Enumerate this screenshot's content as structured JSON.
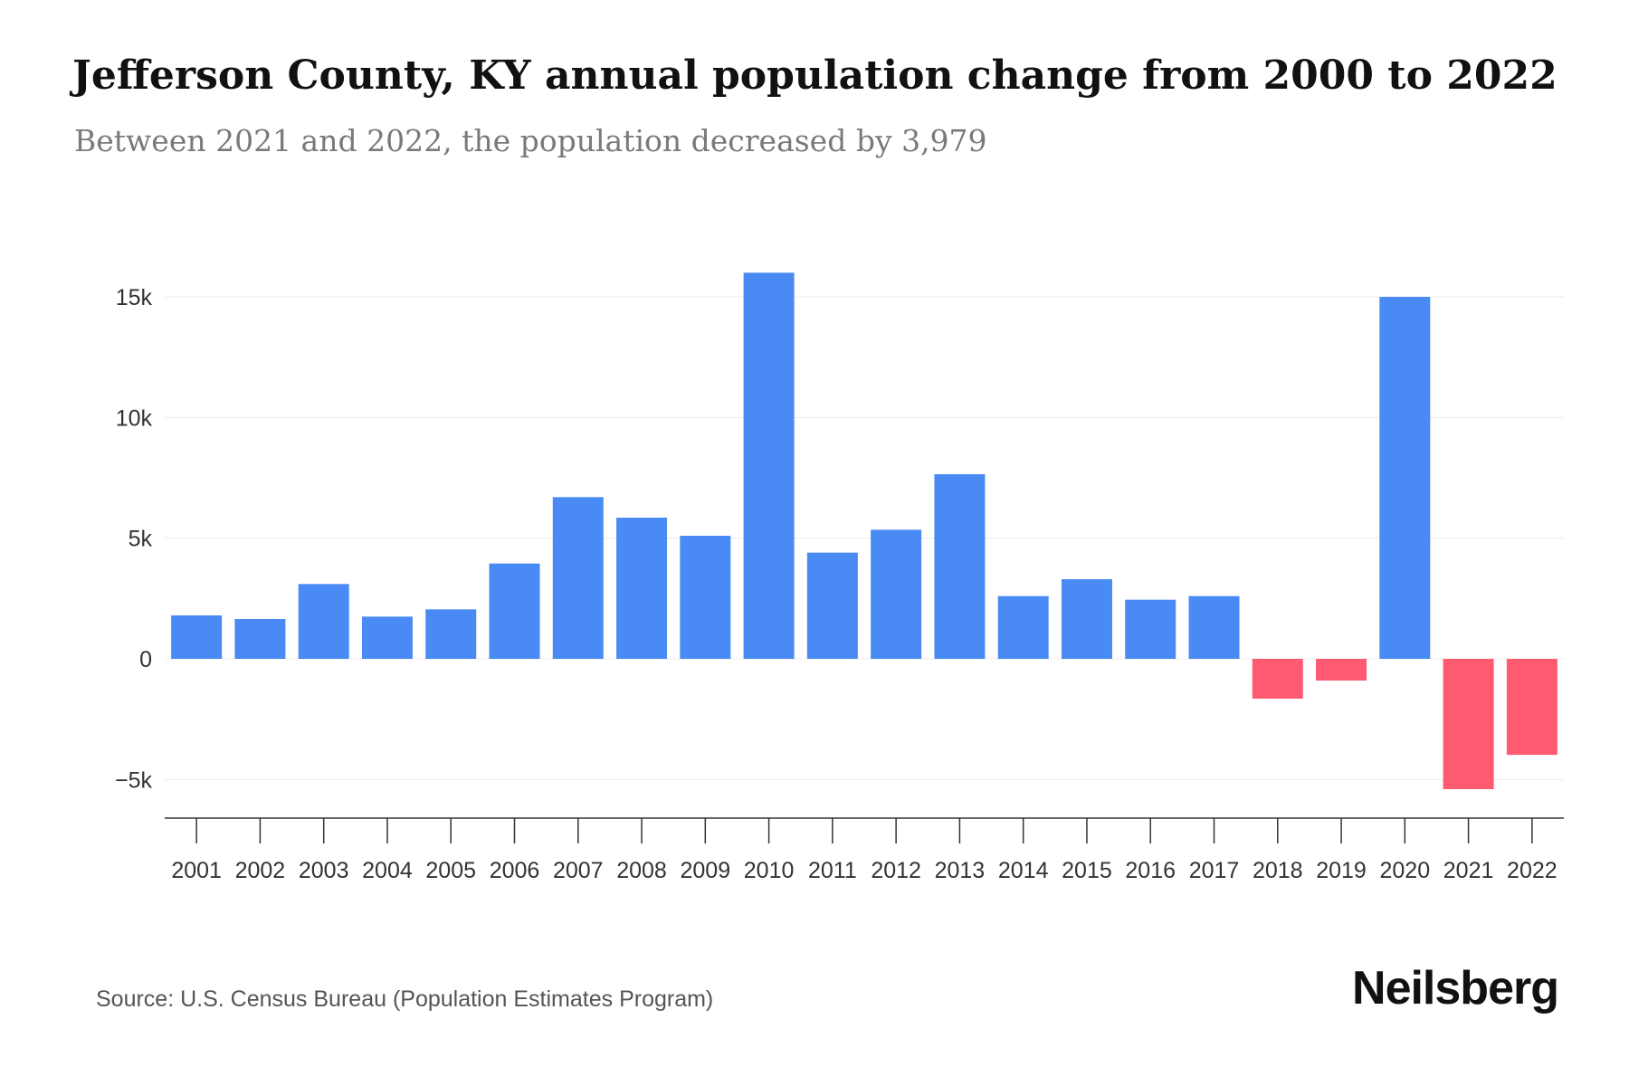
{
  "chart_data": {
    "type": "bar",
    "title": "Jefferson County, KY annual population change from 2000 to 2022",
    "subtitle": "Between 2021 and 2022, the population decreased by 3,979",
    "categories": [
      "2001",
      "2002",
      "2003",
      "2004",
      "2005",
      "2006",
      "2007",
      "2008",
      "2009",
      "2010",
      "2011",
      "2012",
      "2013",
      "2014",
      "2015",
      "2016",
      "2017",
      "2018",
      "2019",
      "2020",
      "2021",
      "2022"
    ],
    "values": [
      1800,
      1650,
      3100,
      1750,
      2050,
      3950,
      6700,
      5850,
      5100,
      16000,
      4400,
      5350,
      7650,
      2600,
      3300,
      2450,
      2600,
      -1650,
      -900,
      15000,
      -5400,
      -3979
    ],
    "ylim": [
      -6500,
      16100
    ],
    "yticks": [
      15000,
      10000,
      5000,
      0,
      -5000
    ],
    "ytick_labels": [
      "15k",
      "10k",
      "5k",
      "0",
      "−5k"
    ],
    "xlabel": "",
    "ylabel": "",
    "colors": {
      "positive": "#4a8af4",
      "negative": "#fe5a71",
      "grid": "#ececec",
      "axis": "#333333"
    }
  },
  "footer": {
    "source": "Source: U.S. Census Bureau (Population Estimates Program)",
    "brand": "Neilsberg"
  }
}
